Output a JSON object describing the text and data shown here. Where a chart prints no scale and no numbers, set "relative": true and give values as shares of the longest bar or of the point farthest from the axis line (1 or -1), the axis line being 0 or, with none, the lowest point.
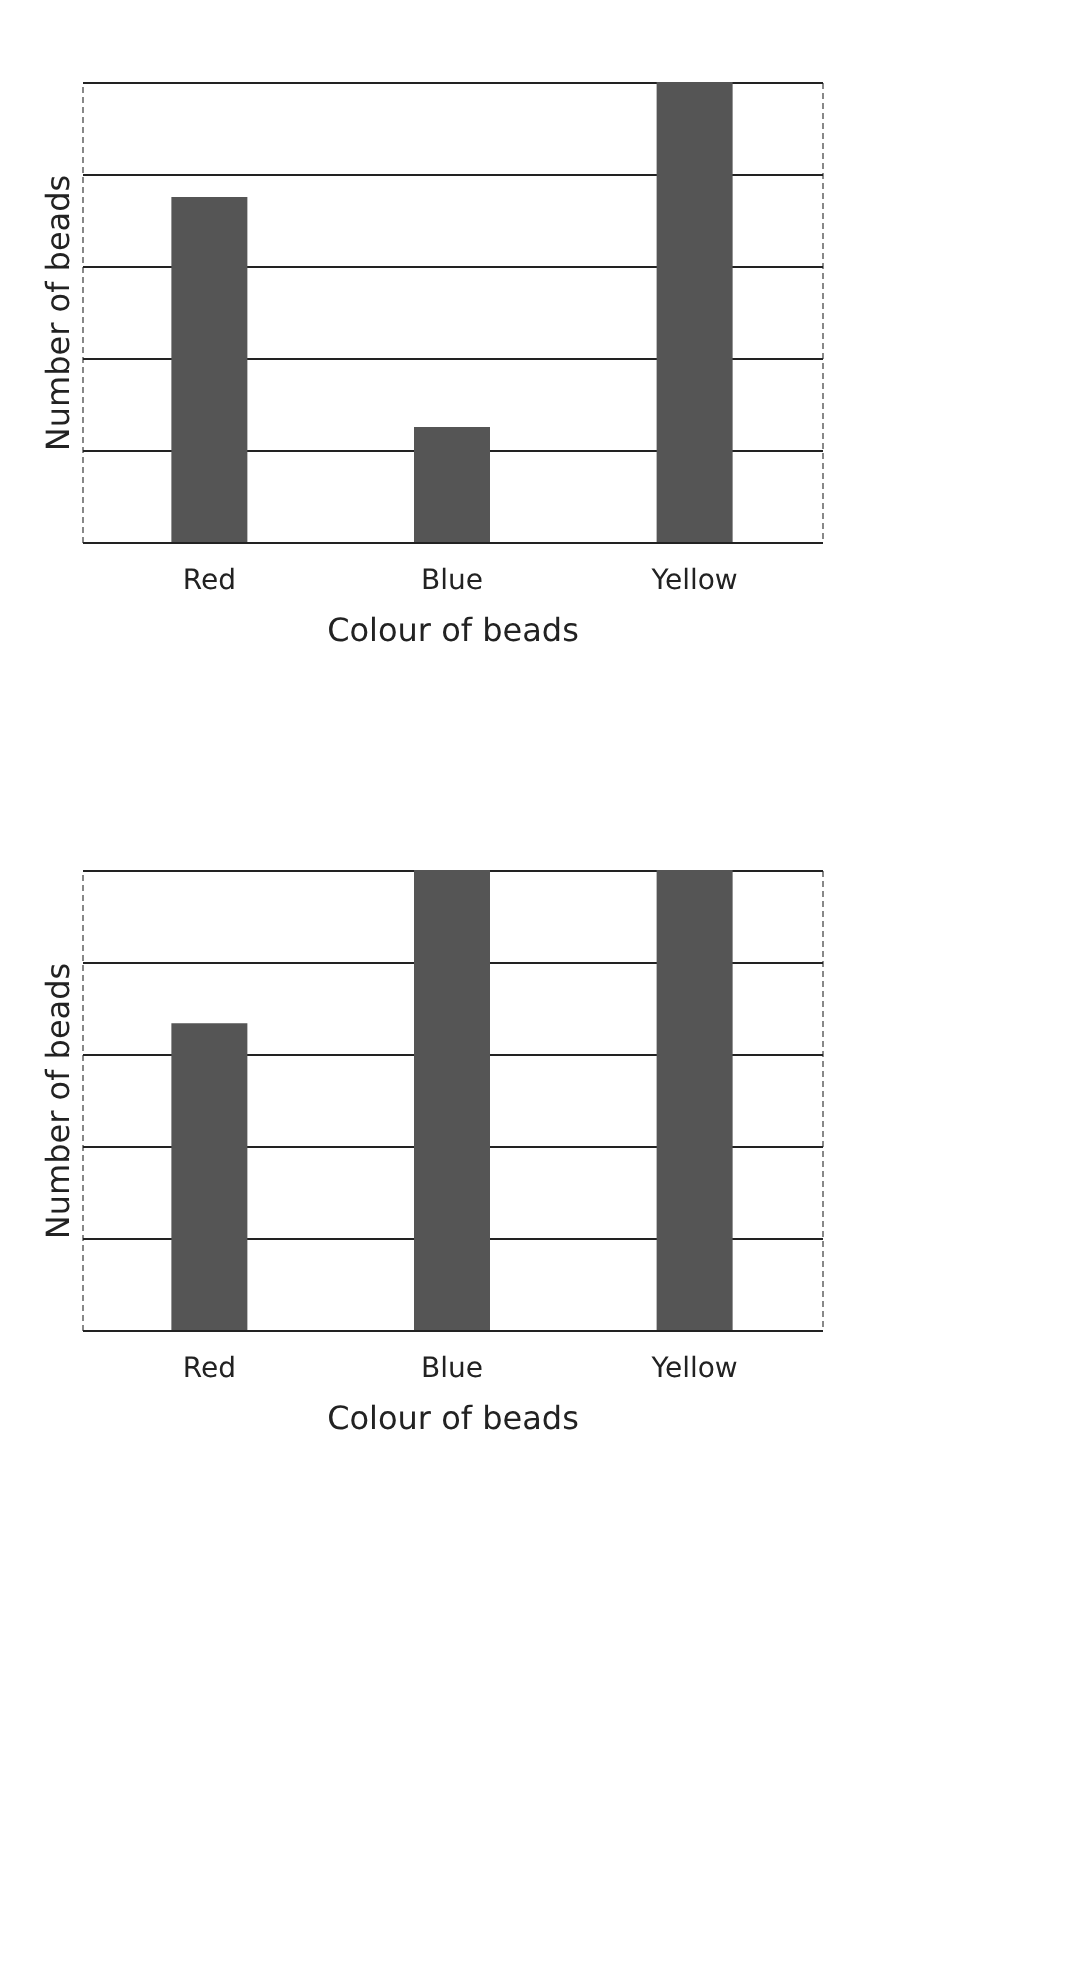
{
  "chart_data": [
    {
      "type": "bar",
      "relative": true,
      "categories": [
        "Red",
        "Blue",
        "Yellow"
      ],
      "values": [
        0.75,
        0.25,
        1
      ],
      "color": "#555555",
      "xlabel": "Colour of beads",
      "ylabel": "Number of beads",
      "grid": "y"
    },
    {
      "type": "bar",
      "relative": true,
      "categories": [
        "Red",
        "Blue",
        "Yellow"
      ],
      "values": [
        0.667,
        1,
        1
      ],
      "color": "#555555",
      "xlabel": "Colour of beads",
      "ylabel": "Number of beads",
      "grid": "y"
    }
  ]
}
